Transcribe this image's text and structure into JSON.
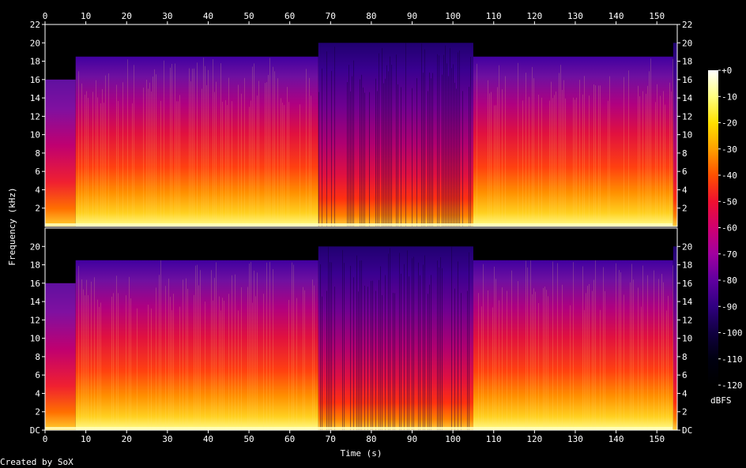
{
  "chart_data": {
    "type": "heatmap",
    "subtype": "stereo spectrogram",
    "title": "",
    "xlabel": "Time (s)",
    "ylabel": "Frequency (kHz)",
    "xlim": [
      0,
      155
    ],
    "ylim_khz": [
      0,
      22
    ],
    "x_ticks": [
      "0",
      "10",
      "20",
      "30",
      "40",
      "50",
      "60",
      "70",
      "80",
      "90",
      "100",
      "110",
      "120",
      "130",
      "140",
      "150"
    ],
    "y_ticks_top_channel": [
      "2",
      "4",
      "6",
      "8",
      "10",
      "12",
      "14",
      "16",
      "18",
      "20",
      "22"
    ],
    "y_ticks_bottom_channel": [
      "DC",
      "2",
      "4",
      "6",
      "8",
      "10",
      "12",
      "14",
      "16",
      "18",
      "20"
    ],
    "channels": [
      "top",
      "bottom"
    ],
    "colorbar": {
      "label": "dBFS",
      "range": [
        -120,
        0
      ],
      "ticks": [
        "+0",
        "-10",
        "-20",
        "-30",
        "-40",
        "-50",
        "-60",
        "-70",
        "-80",
        "-90",
        "-100",
        "-110",
        "-120"
      ],
      "colors": [
        "#ffffff",
        "#ffff80",
        "#ffe000",
        "#ffa000",
        "#ff5000",
        "#f01030",
        "#d00070",
        "#a000a0",
        "#6000a0",
        "#300080",
        "#100040",
        "#000010",
        "#000000"
      ]
    },
    "segments": [
      {
        "start_s": 0,
        "end_s": 7.5,
        "cutoff_khz": 16,
        "description_level": "moderate"
      },
      {
        "start_s": 7.5,
        "end_s": 67,
        "cutoff_khz": 18.5,
        "description_level": "loud"
      },
      {
        "start_s": 67,
        "end_s": 105,
        "cutoff_khz": 20,
        "description_level": "quieter"
      },
      {
        "start_s": 105,
        "end_s": 154,
        "cutoff_khz": 18.5,
        "description_level": "loud"
      },
      {
        "start_s": 154,
        "end_s": 155,
        "cutoff_khz": 20,
        "description_level": "fade"
      }
    ],
    "grid": false,
    "legend": "colorbar-right"
  },
  "footer": {
    "credit": "Created by SoX"
  }
}
